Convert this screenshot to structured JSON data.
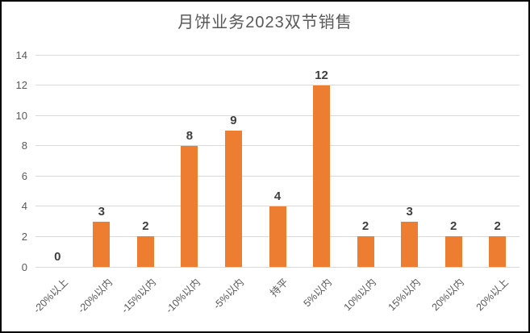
{
  "chart_data": {
    "type": "bar",
    "title": "月饼业务2023双节销售",
    "categories": [
      "-20%以上",
      "-20%以内",
      "-15%以内",
      "-10%以内",
      "-5%以内",
      "持平",
      "5%以内",
      "10%以内",
      "15%以内",
      "20%以内",
      "20%以上"
    ],
    "values": [
      0,
      3,
      2,
      8,
      9,
      4,
      12,
      2,
      3,
      2,
      2
    ],
    "xlabel": "",
    "ylabel": "",
    "ylim": [
      0,
      14
    ],
    "yticks": [
      0,
      2,
      4,
      6,
      8,
      10,
      12,
      14
    ],
    "grid": true,
    "legend_position": "none",
    "x_label_rotation_deg": -45,
    "colors": {
      "bar": "#ED7D31",
      "title_text": "#595959",
      "axis_text": "#595959",
      "data_label_text": "#404040",
      "gridline": "#D9D9D9",
      "background": "#FFFFFF",
      "frame_border": "#000000"
    }
  }
}
